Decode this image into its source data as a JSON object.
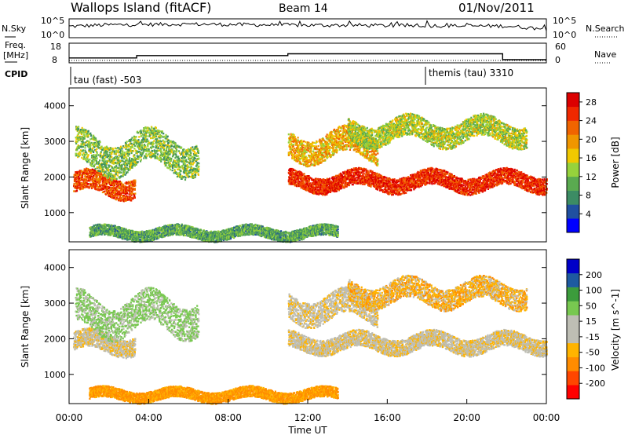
{
  "header": {
    "station": "Wallops Island (fitACF)",
    "beam": "Beam 14",
    "date": "01/Nov/2011"
  },
  "summary_panels": {
    "nsky_label": "N.Sky",
    "nsearch_label": "N.Search",
    "freq_label_line1": "Freq.",
    "freq_label_line2": "[MHz]",
    "nave_label": "Nave",
    "cpid_label": "CPID",
    "cpid_segments": [
      "tau (fast) -503",
      "themis (tau) 3310"
    ]
  },
  "colors": {
    "power_scale": [
      "#0000ff",
      "#2050a0",
      "#3c8c64",
      "#5aaa50",
      "#96d23c",
      "#f0c800",
      "#f09600",
      "#f06400",
      "#f02800",
      "#dc0000"
    ],
    "velocity_scale": [
      "#ff0000",
      "#ff4600",
      "#ff8c00",
      "#ffb400",
      "#bebeb4",
      "#bebeb4",
      "#78c850",
      "#3c9c3c",
      "#1e5aa0",
      "#0000c8"
    ]
  },
  "chart_data": [
    {
      "type": "line",
      "name": "N.Sky",
      "ylabel": "N.Sky",
      "right_ylabel": "N.Search",
      "ytick_labels": [
        "10^5",
        "10^0"
      ],
      "right_ytick_labels": [
        "10^5",
        "10^0"
      ],
      "x": [
        "00:00",
        "02:00",
        "04:00",
        "06:00",
        "08:00",
        "10:00",
        "12:00",
        "14:00",
        "16:00",
        "18:00",
        "20:00",
        "22:00",
        "24:00"
      ],
      "series": [
        {
          "name": "N.Sky",
          "values": [
            3,
            3.4,
            3.5,
            3.6,
            3.5,
            3.4,
            3.3,
            3.3,
            3.2,
            3.2,
            3.1,
            3.1,
            2.3
          ]
        }
      ]
    },
    {
      "type": "line",
      "name": "Frequency",
      "ylabel": "Freq. [MHz]",
      "right_ylabel": "Nave",
      "ylim": [
        8,
        18
      ],
      "ytick_labels": [
        "18",
        "8"
      ],
      "right_ylim": [
        0,
        60
      ],
      "right_ytick_labels": [
        "60",
        "0"
      ],
      "x_hours": [
        0,
        3.4,
        3.4,
        11.0,
        11.0,
        21.8,
        21.8,
        24
      ],
      "series": [
        {
          "name": "Freq. [MHz]",
          "values": [
            10.5,
            10.5,
            11.7,
            11.7,
            12.6,
            12.6,
            9.6,
            9.6
          ]
        }
      ]
    },
    {
      "type": "heatmap",
      "name": "Power",
      "ylabel": "Slant Range [km]",
      "yticks": [
        1000,
        2000,
        3000,
        4000
      ],
      "ylim": [
        180,
        4500
      ],
      "xlim_hours": [
        0,
        24
      ],
      "colorbar_label": "Power [dB]",
      "colorbar_ticks": [
        "4",
        "8",
        "12",
        "16",
        "20",
        "24",
        "28"
      ],
      "colorbar_range": [
        0,
        30
      ],
      "features": [
        {
          "t0": 0.2,
          "t1": 3.3,
          "range_km": 1800,
          "width_km": 550,
          "level_db": 24
        },
        {
          "t0": 0.3,
          "t1": 6.5,
          "range_km": 2700,
          "width_km": 900,
          "level_db": 12
        },
        {
          "t0": 11.0,
          "t1": 24.0,
          "range_km": 1900,
          "width_km": 450,
          "level_db": 26
        },
        {
          "t0": 11.0,
          "t1": 15.5,
          "range_km": 2900,
          "width_km": 700,
          "level_db": 18
        },
        {
          "t0": 14.0,
          "t1": 23.0,
          "range_km": 3300,
          "width_km": 600,
          "level_db": 14
        },
        {
          "t0": 1.0,
          "t1": 13.5,
          "range_km": 450,
          "width_km": 300,
          "level_db": 10
        }
      ]
    },
    {
      "type": "heatmap",
      "name": "Velocity",
      "xlabel": "Time UT",
      "ylabel": "Slant Range [km]",
      "yticks": [
        1000,
        2000,
        3000,
        4000
      ],
      "ylim": [
        180,
        4500
      ],
      "xlim_hours": [
        0,
        24
      ],
      "xtick_labels": [
        "00:00",
        "04:00",
        "08:00",
        "12:00",
        "16:00",
        "20:00",
        "00:00"
      ],
      "colorbar_label": "Velocity [m s^-1]",
      "colorbar_ticks": [
        "-200",
        "-100",
        "-50",
        "-15",
        "15",
        "50",
        "100",
        "200"
      ],
      "features": [
        {
          "t0": 0.2,
          "t1": 3.3,
          "range_km": 1900,
          "width_km": 500,
          "velocity": 0
        },
        {
          "t0": 0.3,
          "t1": 6.5,
          "range_km": 2700,
          "width_km": 900,
          "velocity": 60
        },
        {
          "t0": 11.0,
          "t1": 24.0,
          "range_km": 1900,
          "width_km": 450,
          "velocity": 0
        },
        {
          "t0": 11.0,
          "t1": 15.5,
          "range_km": 2900,
          "width_km": 700,
          "velocity": 5
        },
        {
          "t0": 14.0,
          "t1": 23.0,
          "range_km": 3300,
          "width_km": 600,
          "velocity": -30
        },
        {
          "t0": 1.0,
          "t1": 13.5,
          "range_km": 450,
          "width_km": 300,
          "velocity": -60
        }
      ]
    }
  ]
}
